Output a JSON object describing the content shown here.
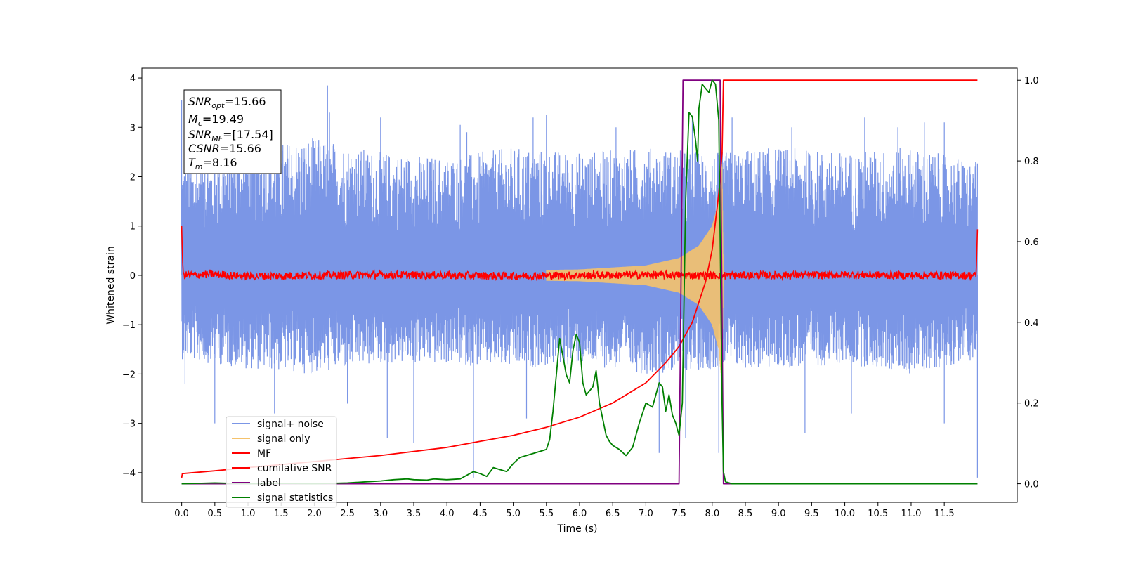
{
  "chart_data": {
    "type": "line",
    "xlabel": "Time (s)",
    "ylabel": "Whitened strain",
    "xlim": [
      -0.6,
      12.6
    ],
    "ylim": [
      -4.6,
      4.2
    ],
    "y2lim": [
      -0.046,
      1.03
    ],
    "x_ticks": [
      "0.0",
      "0.5",
      "1.0",
      "1.5",
      "2.0",
      "2.5",
      "3.0",
      "3.5",
      "4.0",
      "4.5",
      "5.0",
      "5.5",
      "6.0",
      "6.5",
      "7.0",
      "7.5",
      "8.0",
      "8.5",
      "9.0",
      "9.5",
      "10.0",
      "10.5",
      "11.0",
      "11.5"
    ],
    "y_ticks": [
      "4",
      "3",
      "2",
      "1",
      "0",
      "−1",
      "−2",
      "−3",
      "−4"
    ],
    "y2_ticks": [
      "1.0",
      "0.8",
      "0.6",
      "0.4",
      "0.2",
      "0.0"
    ],
    "legend_position": "lower-left",
    "annotation": {
      "snr_opt": "=15.66",
      "mc": "=19.49",
      "snr_mf": "=[17.54]",
      "csnr": "=15.66",
      "tm": "=8.16"
    },
    "series": [
      {
        "name": "signal+ noise",
        "color": "#7b96e6",
        "axis": "left",
        "envelope_upper": [
          [
            0.0,
            2.3
          ],
          [
            1.0,
            2.6
          ],
          [
            2.0,
            2.8
          ],
          [
            3.0,
            2.5
          ],
          [
            4.0,
            2.4
          ],
          [
            5.0,
            2.6
          ],
          [
            6.0,
            2.5
          ],
          [
            7.0,
            2.6
          ],
          [
            8.0,
            2.5
          ],
          [
            9.0,
            2.6
          ],
          [
            10.0,
            2.5
          ],
          [
            11.0,
            2.6
          ],
          [
            12.0,
            2.3
          ]
        ],
        "envelope_lower": [
          [
            0.0,
            -1.7
          ],
          [
            1.0,
            -1.9
          ],
          [
            2.0,
            -2.0
          ],
          [
            3.0,
            -1.8
          ],
          [
            4.0,
            -1.8
          ],
          [
            5.0,
            -1.9
          ],
          [
            6.0,
            -1.8
          ],
          [
            7.0,
            -2.0
          ],
          [
            8.0,
            -1.9
          ],
          [
            9.0,
            -1.9
          ],
          [
            10.0,
            -1.8
          ],
          [
            11.0,
            -2.0
          ],
          [
            12.0,
            -1.7
          ]
        ],
        "peaks": [
          [
            0.0,
            3.55
          ],
          [
            0.35,
            3.3
          ],
          [
            0.8,
            3.0
          ],
          [
            2.2,
            3.85
          ],
          [
            2.23,
            3.3
          ],
          [
            3.0,
            3.2
          ],
          [
            4.2,
            3.05
          ],
          [
            4.3,
            2.9
          ],
          [
            5.3,
            3.2
          ],
          [
            5.5,
            3.25
          ],
          [
            6.55,
            3.0
          ],
          [
            7.7,
            3.2
          ],
          [
            8.3,
            3.2
          ],
          [
            9.2,
            3.0
          ],
          [
            10.3,
            3.2
          ],
          [
            10.8,
            3.0
          ],
          [
            11.2,
            3.1
          ],
          [
            11.5,
            3.1
          ],
          [
            0.05,
            -2.2
          ],
          [
            0.5,
            -3.0
          ],
          [
            1.4,
            -2.8
          ],
          [
            2.5,
            -2.6
          ],
          [
            3.1,
            -3.3
          ],
          [
            3.5,
            -3.4
          ],
          [
            4.4,
            -4.1
          ],
          [
            5.2,
            -2.9
          ],
          [
            7.2,
            -3.6
          ],
          [
            7.6,
            -3.3
          ],
          [
            8.1,
            -3.6
          ],
          [
            9.4,
            -3.2
          ],
          [
            10.1,
            -2.8
          ],
          [
            11.5,
            -3.0
          ],
          [
            12.0,
            -4.1
          ]
        ]
      },
      {
        "name": "signal only",
        "color": "#f5c26b",
        "axis": "left",
        "amplitude": [
          [
            0.0,
            0.05
          ],
          [
            2.0,
            0.06
          ],
          [
            4.0,
            0.08
          ],
          [
            6.0,
            0.12
          ],
          [
            7.0,
            0.2
          ],
          [
            7.5,
            0.35
          ],
          [
            7.8,
            0.6
          ],
          [
            8.0,
            1.0
          ],
          [
            8.1,
            1.5
          ],
          [
            8.15,
            2.3
          ],
          [
            8.17,
            0.0
          ],
          [
            12.0,
            0.0
          ]
        ]
      },
      {
        "name": "MF",
        "color": "#ff0000",
        "axis": "left",
        "points": [
          [
            0.0,
            1.0
          ],
          [
            0.02,
            0.0
          ],
          [
            0.5,
            0.02
          ],
          [
            1.0,
            -0.02
          ],
          [
            2.0,
            0.0
          ],
          [
            3.0,
            0.01
          ],
          [
            4.0,
            0.0
          ],
          [
            5.0,
            -0.01
          ],
          [
            6.0,
            0.0
          ],
          [
            7.0,
            0.01
          ],
          [
            8.0,
            0.0
          ],
          [
            9.0,
            0.0
          ],
          [
            10.0,
            0.01
          ],
          [
            11.0,
            0.0
          ],
          [
            11.98,
            0.0
          ],
          [
            12.0,
            0.9
          ]
        ]
      },
      {
        "name": "cumilative SNR",
        "color": "#ff0000",
        "axis": "right",
        "points": [
          [
            0.0,
            0.015
          ],
          [
            0.01,
            0.025
          ],
          [
            0.5,
            0.032
          ],
          [
            1.0,
            0.04
          ],
          [
            2.0,
            0.055
          ],
          [
            3.0,
            0.07
          ],
          [
            4.0,
            0.09
          ],
          [
            4.5,
            0.105
          ],
          [
            5.0,
            0.12
          ],
          [
            5.5,
            0.14
          ],
          [
            6.0,
            0.165
          ],
          [
            6.5,
            0.2
          ],
          [
            7.0,
            0.25
          ],
          [
            7.3,
            0.3
          ],
          [
            7.5,
            0.34
          ],
          [
            7.7,
            0.4
          ],
          [
            7.9,
            0.5
          ],
          [
            8.0,
            0.58
          ],
          [
            8.1,
            0.72
          ],
          [
            8.15,
            0.82
          ],
          [
            8.17,
            1.0
          ],
          [
            12.0,
            1.0
          ]
        ]
      },
      {
        "name": "label",
        "color": "#800080",
        "axis": "right",
        "points": [
          [
            0.0,
            0.0
          ],
          [
            7.5,
            0.0
          ],
          [
            7.56,
            1.0
          ],
          [
            8.12,
            1.0
          ],
          [
            8.17,
            0.0
          ],
          [
            12.0,
            0.0
          ]
        ]
      },
      {
        "name": "signal statistics",
        "color": "#008000",
        "axis": "right",
        "points": [
          [
            0.0,
            0.0
          ],
          [
            0.5,
            0.002
          ],
          [
            1.0,
            0.0
          ],
          [
            1.5,
            0.001
          ],
          [
            2.0,
            0.0
          ],
          [
            2.5,
            0.002
          ],
          [
            2.8,
            0.005
          ],
          [
            3.0,
            0.007
          ],
          [
            3.2,
            0.01
          ],
          [
            3.4,
            0.012
          ],
          [
            3.5,
            0.01
          ],
          [
            3.7,
            0.009
          ],
          [
            3.8,
            0.012
          ],
          [
            4.0,
            0.01
          ],
          [
            4.2,
            0.012
          ],
          [
            4.4,
            0.03
          ],
          [
            4.5,
            0.025
          ],
          [
            4.6,
            0.018
          ],
          [
            4.7,
            0.04
          ],
          [
            4.8,
            0.035
          ],
          [
            4.9,
            0.03
          ],
          [
            5.0,
            0.05
          ],
          [
            5.1,
            0.065
          ],
          [
            5.2,
            0.07
          ],
          [
            5.3,
            0.075
          ],
          [
            5.4,
            0.08
          ],
          [
            5.5,
            0.085
          ],
          [
            5.55,
            0.11
          ],
          [
            5.6,
            0.18
          ],
          [
            5.7,
            0.36
          ],
          [
            5.8,
            0.27
          ],
          [
            5.85,
            0.25
          ],
          [
            5.9,
            0.33
          ],
          [
            5.95,
            0.37
          ],
          [
            6.0,
            0.35
          ],
          [
            6.05,
            0.25
          ],
          [
            6.1,
            0.22
          ],
          [
            6.2,
            0.24
          ],
          [
            6.25,
            0.28
          ],
          [
            6.3,
            0.2
          ],
          [
            6.4,
            0.12
          ],
          [
            6.45,
            0.105
          ],
          [
            6.5,
            0.095
          ],
          [
            6.6,
            0.085
          ],
          [
            6.7,
            0.07
          ],
          [
            6.8,
            0.09
          ],
          [
            6.9,
            0.15
          ],
          [
            7.0,
            0.2
          ],
          [
            7.1,
            0.19
          ],
          [
            7.2,
            0.25
          ],
          [
            7.25,
            0.24
          ],
          [
            7.3,
            0.18
          ],
          [
            7.35,
            0.22
          ],
          [
            7.4,
            0.17
          ],
          [
            7.45,
            0.15
          ],
          [
            7.5,
            0.12
          ],
          [
            7.55,
            0.2
          ],
          [
            7.6,
            0.7
          ],
          [
            7.65,
            0.92
          ],
          [
            7.7,
            0.91
          ],
          [
            7.75,
            0.85
          ],
          [
            7.78,
            0.8
          ],
          [
            7.8,
            0.93
          ],
          [
            7.85,
            0.99
          ],
          [
            7.9,
            0.98
          ],
          [
            7.95,
            0.97
          ],
          [
            8.0,
            1.0
          ],
          [
            8.05,
            0.99
          ],
          [
            8.1,
            0.9
          ],
          [
            8.15,
            0.2
          ],
          [
            8.17,
            0.03
          ],
          [
            8.2,
            0.005
          ],
          [
            8.3,
            0.0
          ],
          [
            12.0,
            0.0
          ]
        ]
      }
    ]
  }
}
